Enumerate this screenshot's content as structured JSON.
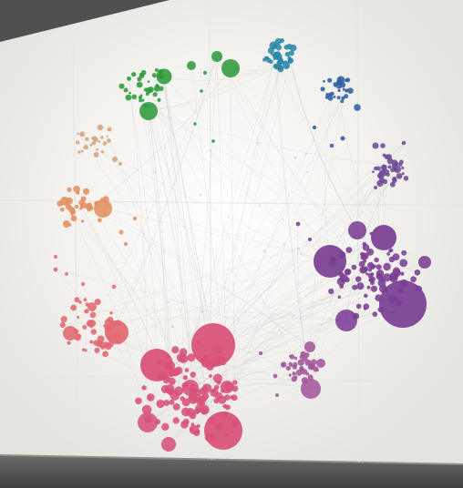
{
  "scene": {
    "subject": "network-graph-projection",
    "clusters": [
      {
        "name": "green",
        "color": "#2f9a3c"
      },
      {
        "name": "teal",
        "color": "#2f87a8"
      },
      {
        "name": "blue",
        "color": "#2d5f9f"
      },
      {
        "name": "violet",
        "color": "#6e4b95"
      },
      {
        "name": "purple",
        "color": "#7a3f93"
      },
      {
        "name": "magenta",
        "color": "#a2569b"
      },
      {
        "name": "rose",
        "color": "#d85276"
      },
      {
        "name": "coral",
        "color": "#e26872"
      },
      {
        "name": "orange",
        "color": "#e39061"
      },
      {
        "name": "tan",
        "color": "#d8a27a"
      }
    ],
    "colors": {
      "screen": "#f2f1ec",
      "edge": "#c9c9c9",
      "frame": "#5b5b5b"
    }
  }
}
